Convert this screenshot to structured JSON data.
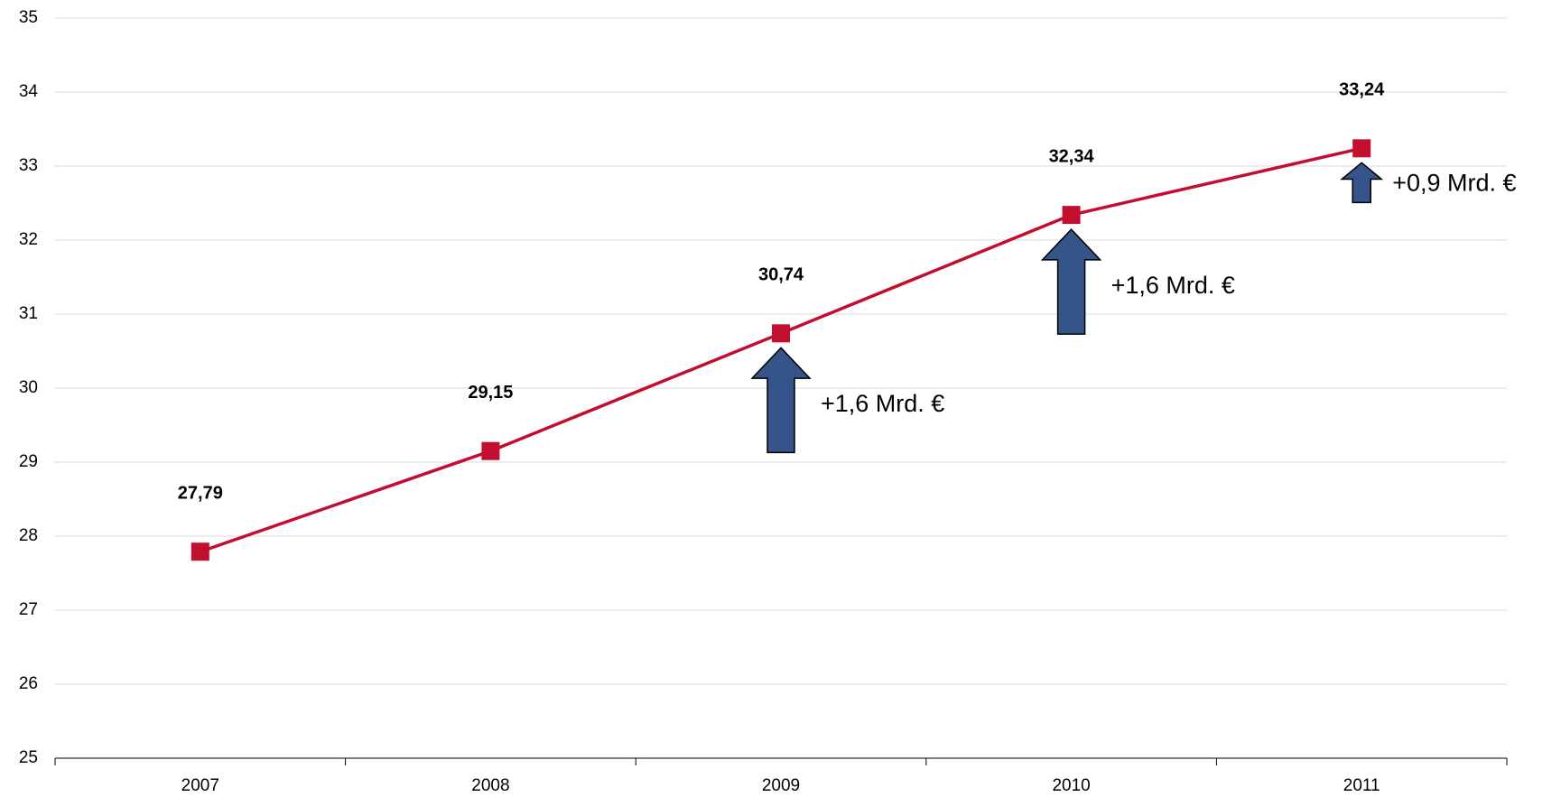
{
  "chart_data": {
    "type": "line",
    "categories": [
      "2007",
      "2008",
      "2009",
      "2010",
      "2011"
    ],
    "series": [
      {
        "color": "#c20f2f",
        "values": [
          27.79,
          29.15,
          30.74,
          32.34,
          33.24
        ],
        "value_labels": [
          "27,79",
          "29,15",
          "30,74",
          "32,34",
          "33,24"
        ]
      }
    ],
    "ylim": [
      25,
      35
    ],
    "yticks": [
      25,
      26,
      27,
      28,
      29,
      30,
      31,
      32,
      33,
      34,
      35
    ],
    "grid": true,
    "annotations": [
      "+1,6 Mrd. €",
      "+1,6 Mrd. €",
      "+0,9 Mrd. €"
    ],
    "annotation_color": "#34548a"
  }
}
